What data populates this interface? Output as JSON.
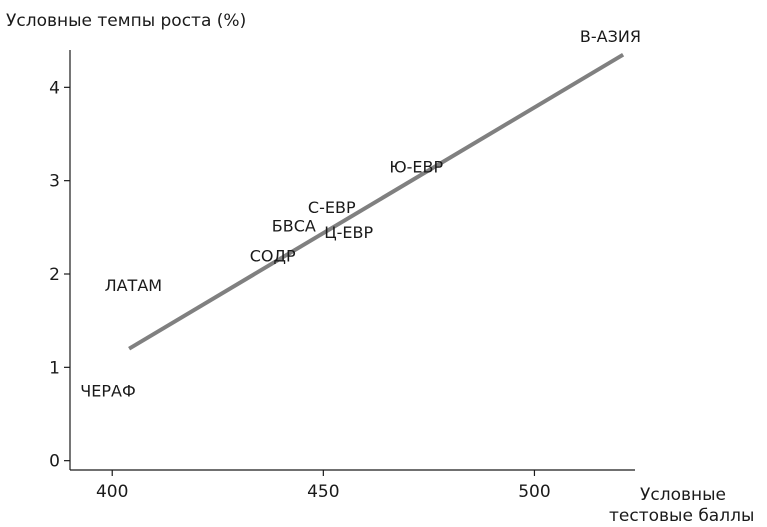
{
  "chart_data": {
    "type": "scatter",
    "ylabel": "Условные темпы роста (%)",
    "xlabel_lines": [
      "Условные",
      "тестовые баллы"
    ],
    "xlim": [
      390,
      525
    ],
    "ylim": [
      -0.1,
      4.4
    ],
    "xticks": [
      400,
      450,
      500
    ],
    "yticks": [
      0,
      1,
      2,
      3,
      4
    ],
    "grid": false,
    "points": [
      {
        "label": "В-АЗИЯ",
        "x": 518,
        "y": 4.55
      },
      {
        "label": "Ю-ЕВР",
        "x": 472,
        "y": 3.15
      },
      {
        "label": "С-ЕВР",
        "x": 452,
        "y": 2.72
      },
      {
        "label": "Ц-ЕВР",
        "x": 456,
        "y": 2.45
      },
      {
        "label": "БВСА",
        "x": 443,
        "y": 2.52
      },
      {
        "label": "СОДР",
        "x": 438,
        "y": 2.2
      },
      {
        "label": "ЛАТАМ",
        "x": 405,
        "y": 1.88
      },
      {
        "label": "ЧЕРАФ",
        "x": 399,
        "y": 0.75
      }
    ],
    "trendline": {
      "x": [
        404,
        521
      ],
      "y": [
        1.2,
        4.35
      ]
    }
  }
}
